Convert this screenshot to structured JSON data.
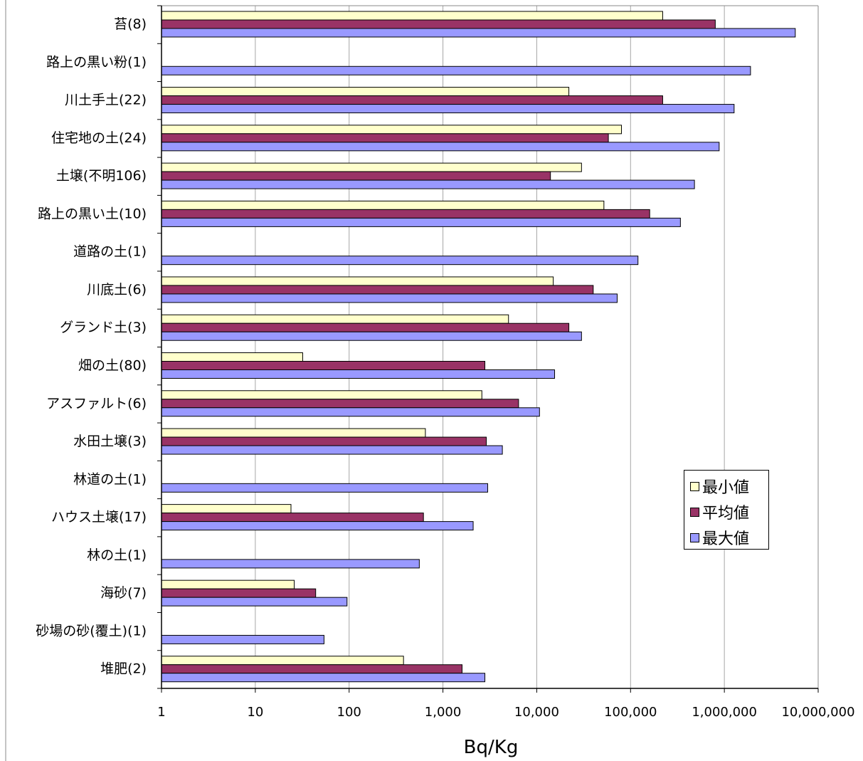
{
  "chart_data": {
    "type": "bar",
    "orientation": "horizontal",
    "xscale": "log",
    "xlim": [
      1,
      10000000
    ],
    "xlabel": "Bq/Kg",
    "ylabel": "",
    "title": "",
    "grid": "vertical",
    "legend_position": "right",
    "x_tick_labels": [
      "1",
      "10",
      "100",
      "1,000",
      "10,000",
      "100,000",
      "1,000,000",
      "10,000,000"
    ],
    "categories": [
      "苔(8)",
      "路上の黒い粉(1)",
      "川土手土(22)",
      "住宅地の土(24)",
      "土壌(不明106)",
      "路上の黒い土(10)",
      "道路の土(1)",
      "川底土(6)",
      "グランド土(3)",
      "畑の土(80)",
      "アスファルト(6)",
      "水田土壌(3)",
      "林道の土(1)",
      "ハウス土壌(17)",
      "林の土(1)",
      "海砂(7)",
      "砂場の砂(覆土)(1)",
      "堆肥(2)"
    ],
    "series": [
      {
        "name": "最小値",
        "color": "#ffffcc",
        "values": [
          220000,
          null,
          22000,
          80000,
          30000,
          52000,
          null,
          15000,
          5000,
          32,
          2600,
          650,
          null,
          24,
          null,
          26,
          null,
          380
        ]
      },
      {
        "name": "平均値",
        "color": "#993366",
        "values": [
          800000,
          null,
          220000,
          58000,
          14000,
          160000,
          null,
          40000,
          22000,
          2800,
          6400,
          2900,
          null,
          620,
          null,
          44,
          null,
          1600
        ]
      },
      {
        "name": "最大値",
        "color": "#9999ff",
        "values": [
          5700000,
          1900000,
          1270000,
          880000,
          480000,
          340000,
          120000,
          72000,
          30000,
          15500,
          10700,
          4300,
          3000,
          2100,
          560,
          95,
          54,
          2800
        ]
      }
    ]
  }
}
